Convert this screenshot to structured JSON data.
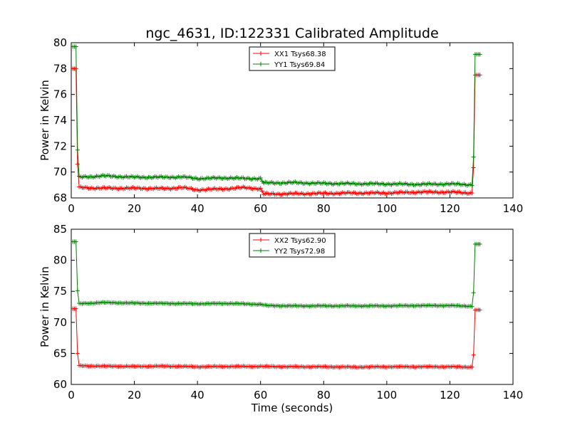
{
  "figure": {
    "title": "ngc_4631, ID:122331 Calibrated Amplitude"
  },
  "chart_data": [
    {
      "type": "line",
      "title": "ngc_4631, ID:122331 Calibrated Amplitude",
      "xlabel": "",
      "ylabel": "Power in Kelvin",
      "xlim": [
        0,
        140
      ],
      "ylim": [
        68,
        80
      ],
      "xticks": [
        "0",
        "20",
        "40",
        "60",
        "80",
        "100",
        "120",
        "140"
      ],
      "yticks": [
        "68",
        "70",
        "72",
        "74",
        "76",
        "78",
        "80"
      ],
      "grid": false,
      "legend_position": "top-center",
      "series": [
        {
          "name": "XX1 Tsys68.38",
          "color": "#ff0000",
          "marker": "+",
          "points": [
            [
              0.5,
              78.0
            ],
            [
              1.0,
              78.0
            ],
            [
              1.5,
              78.0
            ],
            [
              2.0,
              70.6
            ],
            [
              2.5,
              68.8
            ],
            [
              10,
              68.75
            ],
            [
              20,
              68.75
            ],
            [
              30,
              68.72
            ],
            [
              35,
              68.8
            ],
            [
              40,
              68.62
            ],
            [
              50,
              68.72
            ],
            [
              55,
              68.8
            ],
            [
              60,
              68.7
            ],
            [
              61,
              68.3
            ],
            [
              70,
              68.32
            ],
            [
              80,
              68.35
            ],
            [
              90,
              68.38
            ],
            [
              100,
              68.38
            ],
            [
              110,
              68.45
            ],
            [
              120,
              68.45
            ],
            [
              127,
              68.38
            ],
            [
              127.5,
              70.4
            ],
            [
              128,
              77.5
            ],
            [
              129,
              77.5
            ],
            [
              129.5,
              77.5
            ]
          ]
        },
        {
          "name": "YY1 Tsys69.84",
          "color": "#008000",
          "marker": "+",
          "points": [
            [
              0.5,
              79.7
            ],
            [
              1.0,
              79.7
            ],
            [
              1.5,
              79.7
            ],
            [
              2.0,
              71.7
            ],
            [
              2.5,
              69.6
            ],
            [
              10,
              69.7
            ],
            [
              20,
              69.6
            ],
            [
              30,
              69.6
            ],
            [
              35,
              69.62
            ],
            [
              40,
              69.5
            ],
            [
              50,
              69.55
            ],
            [
              55,
              69.5
            ],
            [
              60,
              69.5
            ],
            [
              61,
              69.15
            ],
            [
              70,
              69.18
            ],
            [
              80,
              69.12
            ],
            [
              90,
              69.1
            ],
            [
              100,
              69.08
            ],
            [
              110,
              69.05
            ],
            [
              120,
              69.08
            ],
            [
              127,
              69.02
            ],
            [
              127.5,
              71.2
            ],
            [
              128,
              79.1
            ],
            [
              129,
              79.1
            ],
            [
              129.5,
              79.1
            ]
          ]
        }
      ]
    },
    {
      "type": "line",
      "title": "",
      "xlabel": "Time (seconds)",
      "ylabel": "Power in Kelvin",
      "xlim": [
        0,
        140
      ],
      "ylim": [
        60,
        85
      ],
      "xticks": [
        "0",
        "20",
        "40",
        "60",
        "80",
        "100",
        "120",
        "140"
      ],
      "yticks": [
        "60",
        "65",
        "70",
        "75",
        "80",
        "85"
      ],
      "grid": false,
      "legend_position": "top-center",
      "series": [
        {
          "name": "XX2 Tsys62.90",
          "color": "#ff0000",
          "marker": "+",
          "points": [
            [
              0.5,
              72.2
            ],
            [
              1.0,
              72.2
            ],
            [
              1.5,
              72.2
            ],
            [
              2.0,
              65.0
            ],
            [
              2.5,
              63.0
            ],
            [
              10,
              62.95
            ],
            [
              20,
              62.9
            ],
            [
              30,
              62.95
            ],
            [
              40,
              62.85
            ],
            [
              50,
              62.9
            ],
            [
              60,
              62.9
            ],
            [
              70,
              62.85
            ],
            [
              80,
              62.85
            ],
            [
              90,
              62.8
            ],
            [
              100,
              62.85
            ],
            [
              110,
              62.85
            ],
            [
              120,
              62.85
            ],
            [
              127,
              62.8
            ],
            [
              127.5,
              64.8
            ],
            [
              128,
              72.0
            ],
            [
              129,
              72.0
            ],
            [
              129.5,
              72.0
            ]
          ]
        },
        {
          "name": "YY2 Tsys72.98",
          "color": "#008000",
          "marker": "+",
          "points": [
            [
              0.5,
              83.0
            ],
            [
              1.0,
              83.0
            ],
            [
              1.5,
              83.0
            ],
            [
              2.0,
              75.1
            ],
            [
              2.5,
              73.0
            ],
            [
              10,
              73.2
            ],
            [
              20,
              73.1
            ],
            [
              30,
              73.05
            ],
            [
              40,
              73.0
            ],
            [
              50,
              73.05
            ],
            [
              60,
              72.9
            ],
            [
              62,
              72.7
            ],
            [
              70,
              72.65
            ],
            [
              80,
              72.65
            ],
            [
              90,
              72.65
            ],
            [
              100,
              72.65
            ],
            [
              110,
              72.7
            ],
            [
              120,
              72.7
            ],
            [
              127,
              72.6
            ],
            [
              127.5,
              74.8
            ],
            [
              128,
              82.6
            ],
            [
              129,
              82.6
            ],
            [
              129.5,
              82.6
            ]
          ]
        }
      ]
    }
  ]
}
